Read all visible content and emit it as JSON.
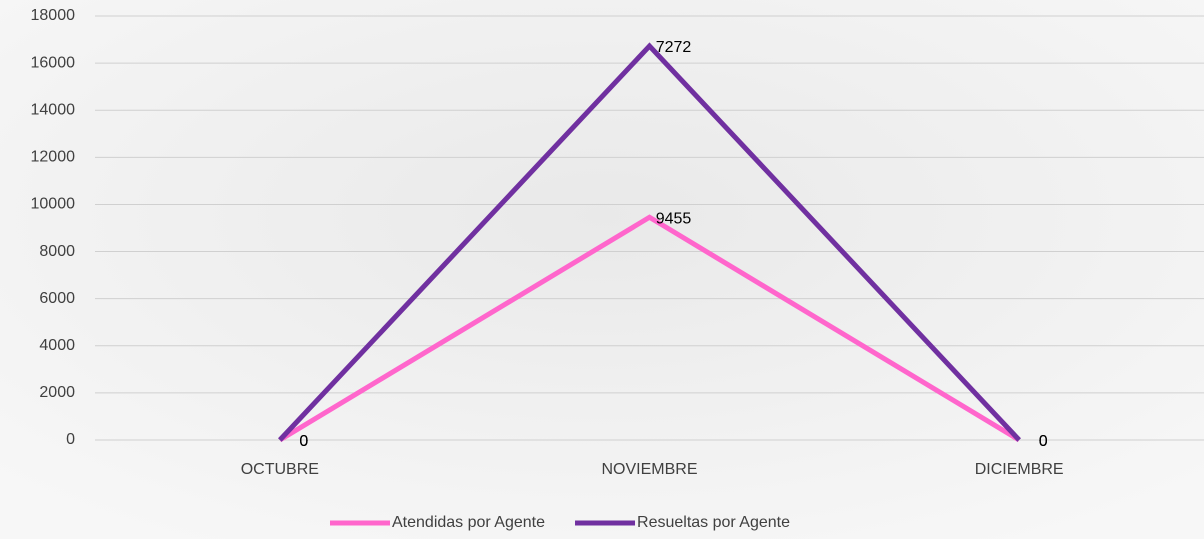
{
  "chart_data": {
    "type": "line",
    "stacked": true,
    "categories": [
      "OCTUBRE",
      "NOVIEMBRE",
      "DICIEMBRE"
    ],
    "series": [
      {
        "name": "Atendidas por Agente",
        "color": "#ff66cc",
        "values": [
          0,
          9455,
          0
        ]
      },
      {
        "name": "Resueltas por Agente",
        "color": "#7030a0",
        "values": [
          0,
          7272,
          0
        ]
      }
    ],
    "ylim": [
      0,
      18000
    ],
    "yticks": [
      0,
      2000,
      4000,
      6000,
      8000,
      10000,
      12000,
      14000,
      16000,
      18000
    ],
    "grid": true,
    "legend": "bottom"
  }
}
